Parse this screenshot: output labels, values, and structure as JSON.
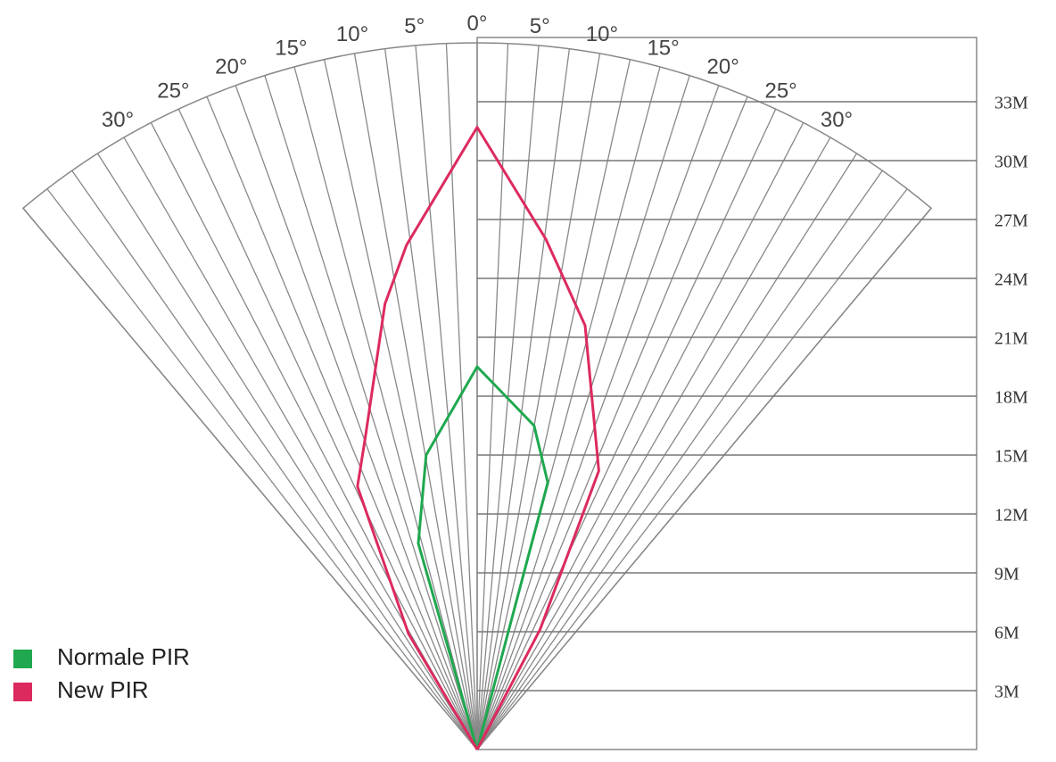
{
  "chart_data": {
    "type": "fan",
    "ylim": [
      0,
      36
    ],
    "yticks": [
      {
        "value": 3,
        "label": "3M"
      },
      {
        "value": 6,
        "label": "6M"
      },
      {
        "value": 9,
        "label": "9M"
      },
      {
        "value": 12,
        "label": "12M"
      },
      {
        "value": 15,
        "label": "15M"
      },
      {
        "value": 18,
        "label": "18M"
      },
      {
        "value": 21,
        "label": "21M"
      },
      {
        "value": 24,
        "label": "24M"
      },
      {
        "value": 27,
        "label": "27M"
      },
      {
        "value": 30,
        "label": "30M"
      },
      {
        "value": 33,
        "label": "33M"
      }
    ],
    "anglelim": [
      -40,
      40
    ],
    "angleticks": [
      {
        "value": -30,
        "label": "30°"
      },
      {
        "value": -25,
        "label": "25°"
      },
      {
        "value": -20,
        "label": "20°"
      },
      {
        "value": -15,
        "label": "15°"
      },
      {
        "value": -10,
        "label": "10°"
      },
      {
        "value": -5,
        "label": "5°"
      },
      {
        "value": 0,
        "label": "0°"
      },
      {
        "value": 5,
        "label": "5°"
      },
      {
        "value": 10,
        "label": "10°"
      },
      {
        "value": 15,
        "label": "15°"
      },
      {
        "value": 20,
        "label": "20°"
      },
      {
        "value": 25,
        "label": "25°"
      },
      {
        "value": 30,
        "label": "30°"
      }
    ],
    "series": [
      {
        "name": "Normale PIR",
        "color": "#1fa84f",
        "x": [
          0,
          -3,
          -2.6,
          0,
          2.9,
          3.6,
          0
        ],
        "values": [
          0,
          10.5,
          15,
          19.5,
          16.5,
          13.6,
          0
        ]
      },
      {
        "name": "New PIR",
        "color": "#dc2a5e",
        "x": [
          0,
          -3.5,
          -6.1,
          -5.7,
          -4.7,
          -3.6,
          0,
          3.5,
          5.5,
          6.2,
          3.2,
          0
        ],
        "values": [
          0,
          5.9,
          13.4,
          15.9,
          22.7,
          25.7,
          31.7,
          26,
          21.6,
          14.2,
          6.1,
          0
        ]
      }
    ]
  }
}
